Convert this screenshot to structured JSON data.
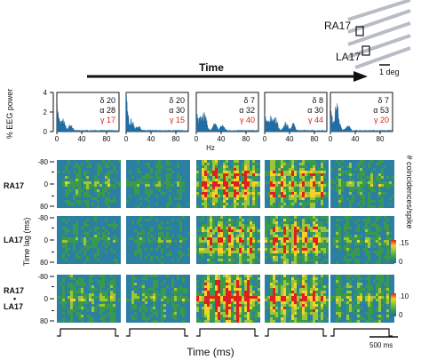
{
  "chart_data": [
    {
      "type": "area",
      "ylabel": "% EEG power",
      "xlabel": "Hz",
      "ylim": [
        0,
        4
      ],
      "xlim": [
        0,
        100
      ],
      "yticks": [
        "0",
        "2",
        "4"
      ],
      "xticks": [
        "0",
        "40",
        "80"
      ],
      "panels": [
        {
          "delta": "δ 20",
          "alpha": "α 28",
          "gamma": "γ 17"
        },
        {
          "delta": "δ 20",
          "alpha": "α 30",
          "gamma": "γ 15"
        },
        {
          "delta": "δ 7",
          "alpha": "α 32",
          "gamma": "γ 40"
        },
        {
          "delta": "δ 8",
          "alpha": "α 30",
          "gamma": "γ 44"
        },
        {
          "delta": "δ 7",
          "alpha": "α 53",
          "gamma": "γ 20"
        }
      ]
    },
    {
      "type": "heatmap",
      "ylabel": "Time lag (ms)",
      "xlabel": "Time  (ms)",
      "yticks": [
        "-80",
        "0",
        "80"
      ],
      "rows": [
        "RA17",
        "LA17",
        "RA17",
        "LA17"
      ],
      "colorbar_title": "# coincidences/spike",
      "colorbars": [
        {
          "max": ".15",
          "min": "0"
        },
        {
          "max": ".10",
          "min": "0"
        }
      ],
      "scale_bar": "500 ms"
    }
  ],
  "time_arrow_label": "Time",
  "inset": {
    "label_top": "RA17",
    "label_bottom": "LA17",
    "scale": "1 deg"
  }
}
